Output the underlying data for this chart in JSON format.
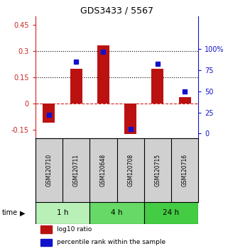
{
  "title": "GDS3433 / 5567",
  "samples": [
    "GSM120710",
    "GSM120711",
    "GSM120648",
    "GSM120708",
    "GSM120715",
    "GSM120716"
  ],
  "log10_ratio": [
    -0.11,
    0.2,
    0.335,
    -0.175,
    0.2,
    0.035
  ],
  "percentile_rank": [
    22,
    85,
    97,
    5,
    83,
    50
  ],
  "groups": [
    {
      "label": "1 h",
      "cols": [
        0,
        1
      ],
      "color": "#b8f0b8"
    },
    {
      "label": "4 h",
      "cols": [
        2,
        3
      ],
      "color": "#66d966"
    },
    {
      "label": "24 h",
      "cols": [
        4,
        5
      ],
      "color": "#44cc44"
    }
  ],
  "bar_color": "#bb1111",
  "dot_color": "#1111cc",
  "ylim_left": [
    -0.2,
    0.5
  ],
  "ylim_right": [
    -5.556,
    138.89
  ],
  "yticks_left": [
    -0.15,
    0.0,
    0.15,
    0.3,
    0.45
  ],
  "yticks_right": [
    0,
    25,
    50,
    75,
    100
  ],
  "hlines": [
    0.15,
    0.3
  ],
  "zero_line_color": "#cc2222",
  "background_color": "#ffffff",
  "plot_bg": "#ffffff",
  "xlabel": "time",
  "legend_ratio_label": "log10 ratio",
  "legend_pct_label": "percentile rank within the sample",
  "title_fontsize": 9,
  "tick_fontsize": 7,
  "bar_width": 0.45
}
